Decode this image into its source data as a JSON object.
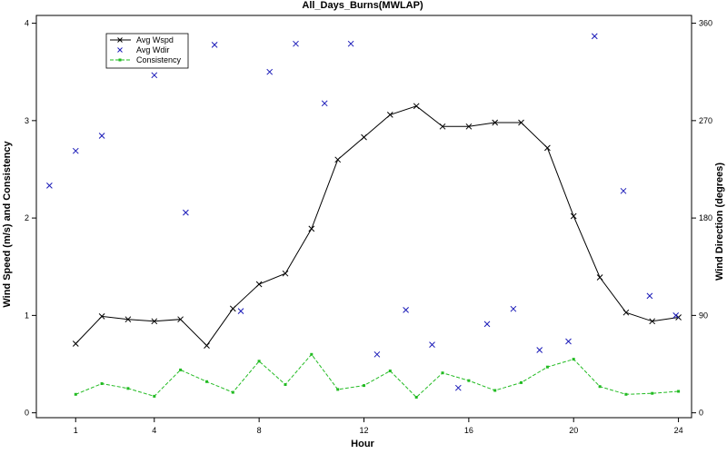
{
  "chart_data": {
    "type": "line",
    "title": "All_Days_Burns(MWLAP)",
    "xlabel": "Hour",
    "ylabel": "Wind Speed (m/s) and Consistency",
    "y2label": "Wind Direction (degrees)",
    "xlim": [
      -0.5,
      24.5
    ],
    "ylim": [
      -0.05,
      4.08
    ],
    "y2lim": [
      -4.5,
      367.2
    ],
    "xticks": [
      1,
      4,
      8,
      12,
      16,
      20,
      24
    ],
    "yticks": [
      0,
      1,
      2,
      3,
      4
    ],
    "y2ticks": [
      0,
      90,
      180,
      270,
      360
    ],
    "grid": false,
    "legend_position": "top-left",
    "colors": {
      "wspd": "#000000",
      "wdir": "#1a1ab8",
      "consistency": "#22bb22"
    },
    "series": [
      {
        "name": "Avg Wspd",
        "style": "line-x",
        "x": [
          1,
          2,
          3,
          4,
          5,
          6,
          7,
          8,
          9,
          10,
          11,
          12,
          13,
          14,
          15,
          16,
          17,
          18,
          19,
          20,
          21,
          22,
          23,
          24
        ],
        "values": [
          0.71,
          0.99,
          0.96,
          0.94,
          0.96,
          0.69,
          1.07,
          1.32,
          1.43,
          1.89,
          2.6,
          2.83,
          3.06,
          3.15,
          2.94,
          2.94,
          2.98,
          2.98,
          2.72,
          2.02,
          1.39,
          1.03,
          0.94,
          0.98
        ]
      },
      {
        "name": "Avg Wdir",
        "style": "points-x",
        "x": [
          0,
          1,
          2,
          3,
          4,
          5.2,
          6.3,
          7.3,
          8.4,
          9.4,
          10.5,
          11.5,
          12.5,
          13.6,
          14.6,
          15.6,
          16.7,
          17.7,
          18.7,
          19.8,
          20.8,
          21.9,
          22.9,
          23.9
        ],
        "values": [
          210,
          242,
          256,
          327,
          312,
          185,
          340,
          94,
          315,
          341,
          286,
          341,
          54,
          95,
          63,
          23,
          82,
          96,
          58,
          66,
          348,
          205,
          108,
          90
        ]
      },
      {
        "name": "Consistency",
        "style": "dashed-square",
        "x": [
          1,
          2,
          3,
          4,
          5,
          6,
          7,
          8,
          9,
          10,
          11,
          12,
          13,
          14,
          15,
          16,
          17,
          18,
          19,
          20,
          21,
          22,
          23,
          24
        ],
        "values": [
          0.19,
          0.3,
          0.25,
          0.17,
          0.44,
          0.32,
          0.21,
          0.53,
          0.29,
          0.6,
          0.24,
          0.28,
          0.43,
          0.16,
          0.41,
          0.33,
          0.23,
          0.31,
          0.47,
          0.55,
          0.27,
          0.19,
          0.2,
          0.22
        ]
      }
    ]
  }
}
